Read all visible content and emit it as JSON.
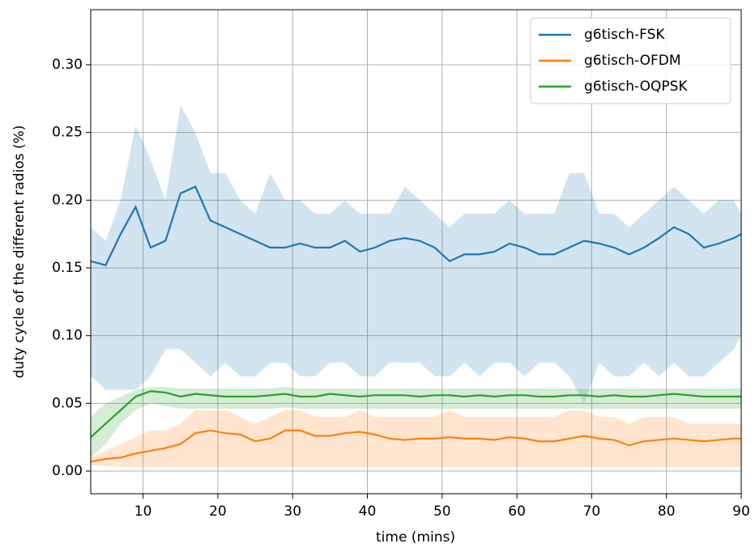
{
  "chart_data": {
    "type": "line",
    "x_label": "time (mins)",
    "y_label": "duty cycle of the different radios (%)",
    "x": [
      3,
      5,
      7,
      9,
      11,
      13,
      15,
      17,
      19,
      21,
      23,
      25,
      27,
      29,
      31,
      33,
      35,
      37,
      39,
      41,
      43,
      45,
      47,
      49,
      51,
      53,
      55,
      57,
      59,
      61,
      63,
      65,
      67,
      69,
      71,
      73,
      75,
      77,
      79,
      81,
      83,
      85,
      87,
      89,
      90
    ],
    "series": [
      {
        "name": "g6tisch-FSK",
        "color": "#1f77b4",
        "values": [
          0.155,
          0.152,
          0.175,
          0.195,
          0.165,
          0.17,
          0.205,
          0.21,
          0.185,
          0.18,
          0.175,
          0.17,
          0.165,
          0.165,
          0.168,
          0.165,
          0.165,
          0.17,
          0.162,
          0.165,
          0.17,
          0.172,
          0.17,
          0.165,
          0.155,
          0.16,
          0.16,
          0.162,
          0.168,
          0.165,
          0.16,
          0.16,
          0.165,
          0.17,
          0.168,
          0.165,
          0.16,
          0.165,
          0.172,
          0.18,
          0.175,
          0.165,
          0.168,
          0.172,
          0.175
        ],
        "upper": [
          0.18,
          0.17,
          0.2,
          0.255,
          0.23,
          0.2,
          0.27,
          0.25,
          0.22,
          0.22,
          0.2,
          0.19,
          0.22,
          0.2,
          0.2,
          0.19,
          0.19,
          0.2,
          0.19,
          0.19,
          0.19,
          0.21,
          0.2,
          0.19,
          0.18,
          0.19,
          0.19,
          0.19,
          0.2,
          0.19,
          0.19,
          0.19,
          0.22,
          0.22,
          0.19,
          0.19,
          0.18,
          0.19,
          0.2,
          0.21,
          0.2,
          0.19,
          0.2,
          0.2,
          0.19
        ],
        "lower": [
          0.07,
          0.06,
          0.06,
          0.06,
          0.07,
          0.09,
          0.09,
          0.08,
          0.07,
          0.08,
          0.07,
          0.07,
          0.08,
          0.08,
          0.07,
          0.07,
          0.08,
          0.08,
          0.07,
          0.07,
          0.08,
          0.08,
          0.08,
          0.07,
          0.07,
          0.08,
          0.07,
          0.08,
          0.08,
          0.07,
          0.08,
          0.08,
          0.07,
          0.05,
          0.08,
          0.07,
          0.07,
          0.08,
          0.07,
          0.08,
          0.07,
          0.07,
          0.08,
          0.09,
          0.1
        ]
      },
      {
        "name": "g6tisch-OFDM",
        "color": "#ff7f0e",
        "values": [
          0.007,
          0.009,
          0.01,
          0.013,
          0.015,
          0.017,
          0.02,
          0.028,
          0.03,
          0.028,
          0.027,
          0.022,
          0.024,
          0.03,
          0.03,
          0.026,
          0.026,
          0.028,
          0.029,
          0.027,
          0.024,
          0.023,
          0.024,
          0.024,
          0.025,
          0.024,
          0.024,
          0.023,
          0.025,
          0.024,
          0.022,
          0.022,
          0.024,
          0.026,
          0.024,
          0.023,
          0.019,
          0.022,
          0.023,
          0.024,
          0.023,
          0.022,
          0.023,
          0.024,
          0.024
        ],
        "upper": [
          0.01,
          0.015,
          0.02,
          0.025,
          0.03,
          0.03,
          0.035,
          0.045,
          0.045,
          0.045,
          0.04,
          0.035,
          0.04,
          0.045,
          0.045,
          0.04,
          0.04,
          0.04,
          0.045,
          0.04,
          0.04,
          0.04,
          0.04,
          0.04,
          0.045,
          0.04,
          0.04,
          0.04,
          0.04,
          0.04,
          0.04,
          0.04,
          0.045,
          0.045,
          0.04,
          0.04,
          0.035,
          0.04,
          0.04,
          0.04,
          0.035,
          0.035,
          0.035,
          0.035,
          0.035
        ],
        "lower": [
          0.004,
          0.004,
          0.003,
          0.003,
          0.003,
          0.003,
          0.003,
          0.003,
          0.003,
          0.003,
          0.003,
          0.003,
          0.003,
          0.003,
          0.003,
          0.003,
          0.003,
          0.003,
          0.003,
          0.003,
          0.003,
          0.003,
          0.003,
          0.003,
          0.003,
          0.003,
          0.003,
          0.003,
          0.003,
          0.003,
          0.003,
          0.003,
          0.003,
          0.003,
          0.003,
          0.003,
          0.003,
          0.003,
          0.003,
          0.003,
          0.003,
          0.003,
          0.003,
          0.003,
          0.003
        ]
      },
      {
        "name": "g6tisch-OQPSK",
        "color": "#2ca02c",
        "values": [
          0.025,
          0.035,
          0.045,
          0.055,
          0.059,
          0.058,
          0.055,
          0.057,
          0.056,
          0.055,
          0.055,
          0.055,
          0.056,
          0.057,
          0.055,
          0.055,
          0.057,
          0.056,
          0.055,
          0.056,
          0.056,
          0.056,
          0.055,
          0.056,
          0.056,
          0.055,
          0.056,
          0.055,
          0.056,
          0.056,
          0.055,
          0.055,
          0.056,
          0.056,
          0.055,
          0.056,
          0.055,
          0.055,
          0.056,
          0.057,
          0.056,
          0.055,
          0.055,
          0.055,
          0.055
        ],
        "upper": [
          0.04,
          0.05,
          0.055,
          0.06,
          0.062,
          0.062,
          0.061,
          0.061,
          0.061,
          0.061,
          0.061,
          0.061,
          0.061,
          0.062,
          0.061,
          0.061,
          0.061,
          0.061,
          0.061,
          0.061,
          0.061,
          0.061,
          0.061,
          0.061,
          0.061,
          0.061,
          0.061,
          0.061,
          0.061,
          0.061,
          0.061,
          0.061,
          0.061,
          0.061,
          0.061,
          0.061,
          0.061,
          0.061,
          0.061,
          0.061,
          0.061,
          0.061,
          0.061,
          0.061,
          0.061
        ],
        "lower": [
          0.01,
          0.02,
          0.035,
          0.045,
          0.05,
          0.048,
          0.046,
          0.046,
          0.046,
          0.046,
          0.046,
          0.046,
          0.046,
          0.047,
          0.046,
          0.046,
          0.046,
          0.046,
          0.046,
          0.046,
          0.046,
          0.046,
          0.046,
          0.046,
          0.046,
          0.046,
          0.046,
          0.046,
          0.046,
          0.046,
          0.046,
          0.046,
          0.046,
          0.046,
          0.046,
          0.046,
          0.046,
          0.046,
          0.046,
          0.046,
          0.046,
          0.046,
          0.046,
          0.046,
          0.046
        ]
      }
    ],
    "xlim": [
      3,
      90
    ],
    "ylim": [
      -0.0167,
      0.3406
    ],
    "xticks": [
      10,
      20,
      30,
      40,
      50,
      60,
      70,
      80,
      90
    ],
    "yticks": [
      {
        "value": 0,
        "label": "0.00"
      },
      {
        "value": 0.05,
        "label": "0.05"
      },
      {
        "value": 0.1,
        "label": "0.10"
      },
      {
        "value": 0.15,
        "label": "0.15"
      },
      {
        "value": 0.2,
        "label": "0.20"
      },
      {
        "value": 0.25,
        "label": "0.25"
      },
      {
        "value": 0.3,
        "label": "0.30"
      }
    ],
    "grid": true,
    "legend": "upper right"
  }
}
